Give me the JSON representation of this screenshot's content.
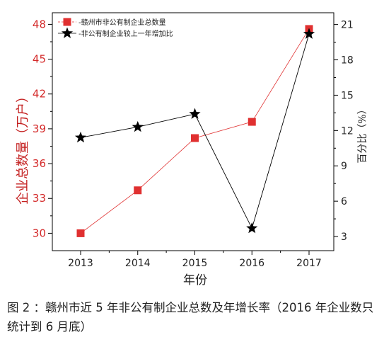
{
  "chart_data": {
    "type": "line",
    "categories": [
      "2013",
      "2014",
      "2015",
      "2016",
      "2017"
    ],
    "series": [
      {
        "name": "赣州市非公有制企业总数量",
        "axis": "left",
        "marker": "square",
        "color": "#e03030",
        "values": [
          30.0,
          33.7,
          38.2,
          39.6,
          47.6
        ]
      },
      {
        "name": "非公有制企业较上一年增加比",
        "axis": "right",
        "marker": "star",
        "color": "#000000",
        "values": [
          11.4,
          12.3,
          13.4,
          3.7,
          20.2
        ]
      }
    ],
    "xlabel": "年份",
    "ylabel_left": "企业总数量（万户）",
    "ylabel_right": "百分比（%）",
    "ylim_left": [
      28.5,
      49
    ],
    "yticks_left": [
      30,
      33,
      36,
      39,
      42,
      45,
      48
    ],
    "ylim_right": [
      1.8,
      22
    ],
    "yticks_right": [
      3,
      6,
      9,
      12,
      15,
      18,
      21
    ],
    "legend_position": "top-left",
    "grid": false
  },
  "caption": "图 2 ：赣州市近 5 年非公有制企业总数及年增长率（2016 年企业数只统计到 6 月底）"
}
